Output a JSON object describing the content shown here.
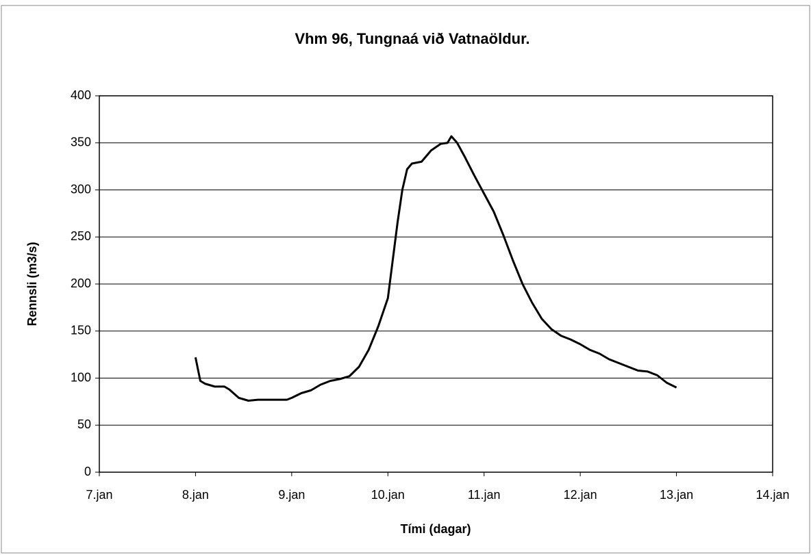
{
  "chart_data": {
    "type": "line",
    "title": "Vhm 96, Tungnaá við Vatnaöldur.",
    "xlabel": "Tími (dagar)",
    "ylabel": "Rennsli (m3/s)",
    "x": [
      8.0,
      8.05,
      8.1,
      8.2,
      8.3,
      8.35,
      8.45,
      8.55,
      8.65,
      8.75,
      8.85,
      8.95,
      9.0,
      9.1,
      9.2,
      9.3,
      9.4,
      9.5,
      9.6,
      9.7,
      9.8,
      9.9,
      10.0,
      10.05,
      10.1,
      10.15,
      10.2,
      10.25,
      10.35,
      10.45,
      10.55,
      10.62,
      10.66,
      10.72,
      10.8,
      10.9,
      11.0,
      11.1,
      11.2,
      11.3,
      11.4,
      11.5,
      11.6,
      11.7,
      11.8,
      11.9,
      12.0,
      12.1,
      12.2,
      12.3,
      12.4,
      12.5,
      12.6,
      12.7,
      12.8,
      12.9,
      13.0
    ],
    "values": [
      122,
      97,
      94,
      91,
      91,
      88,
      79,
      76,
      77,
      77,
      77,
      77,
      79,
      84,
      87,
      93,
      97,
      99,
      102,
      112,
      130,
      155,
      185,
      225,
      265,
      300,
      322,
      328,
      330,
      342,
      349,
      350,
      357,
      350,
      335,
      315,
      296,
      277,
      252,
      225,
      200,
      180,
      163,
      152,
      145,
      141,
      136,
      130,
      126,
      120,
      116,
      112,
      108,
      107,
      103,
      95,
      90
    ],
    "color": "#000000",
    "xlim": [
      7,
      14
    ],
    "xticks": [
      {
        "value": 7,
        "label": "7.jan"
      },
      {
        "value": 8,
        "label": "8.jan"
      },
      {
        "value": 9,
        "label": "9.jan"
      },
      {
        "value": 10,
        "label": "10.jan"
      },
      {
        "value": 11,
        "label": "11.jan"
      },
      {
        "value": 12,
        "label": "12.jan"
      },
      {
        "value": 13,
        "label": "13.jan"
      },
      {
        "value": 14,
        "label": "14.jan"
      }
    ],
    "ylim": [
      0,
      400
    ],
    "yticks": [
      0,
      50,
      100,
      150,
      200,
      250,
      300,
      350,
      400
    ],
    "grid": true
  }
}
